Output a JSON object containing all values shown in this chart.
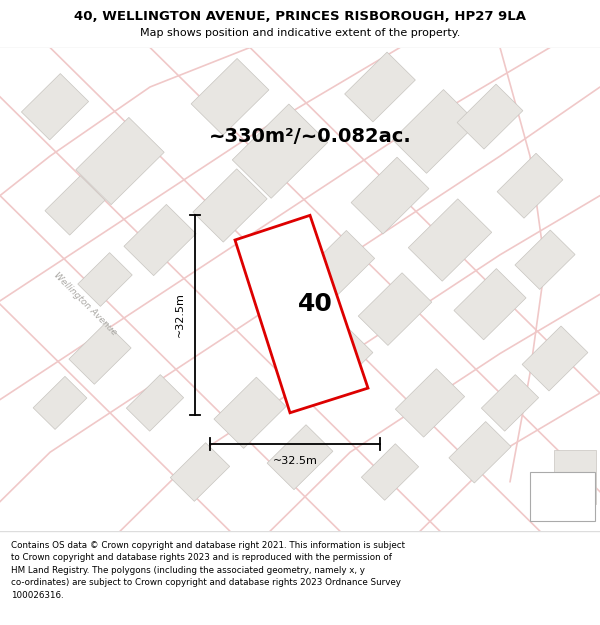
{
  "title_line1": "40, WELLINGTON AVENUE, PRINCES RISBOROUGH, HP27 9LA",
  "title_line2": "Map shows position and indicative extent of the property.",
  "area_label": "~330m²/~0.082ac.",
  "plot_number": "40",
  "dim_vertical": "~32.5m",
  "dim_horizontal": "~32.5m",
  "road_label": "Wellington Avenue",
  "footer_text": "Contains OS data © Crown copyright and database right 2021. This information is subject\nto Crown copyright and database rights 2023 and is reproduced with the permission of\nHM Land Registry. The polygons (including the associated geometry, namely x, y\nco-ordinates) are subject to Crown copyright and database rights 2023 Ordnance Survey\n100026316.",
  "bg_color": "#f8f7f5",
  "map_bg": "#f8f7f5",
  "building_fill": "#e8e6e2",
  "building_edge": "#c8c5c0",
  "road_color": "#f0c8c8",
  "plot_fill": "white",
  "plot_edge": "#dd0000",
  "title_area_bg": "white",
  "footer_area_bg": "white",
  "separator_color": "#dddddd"
}
